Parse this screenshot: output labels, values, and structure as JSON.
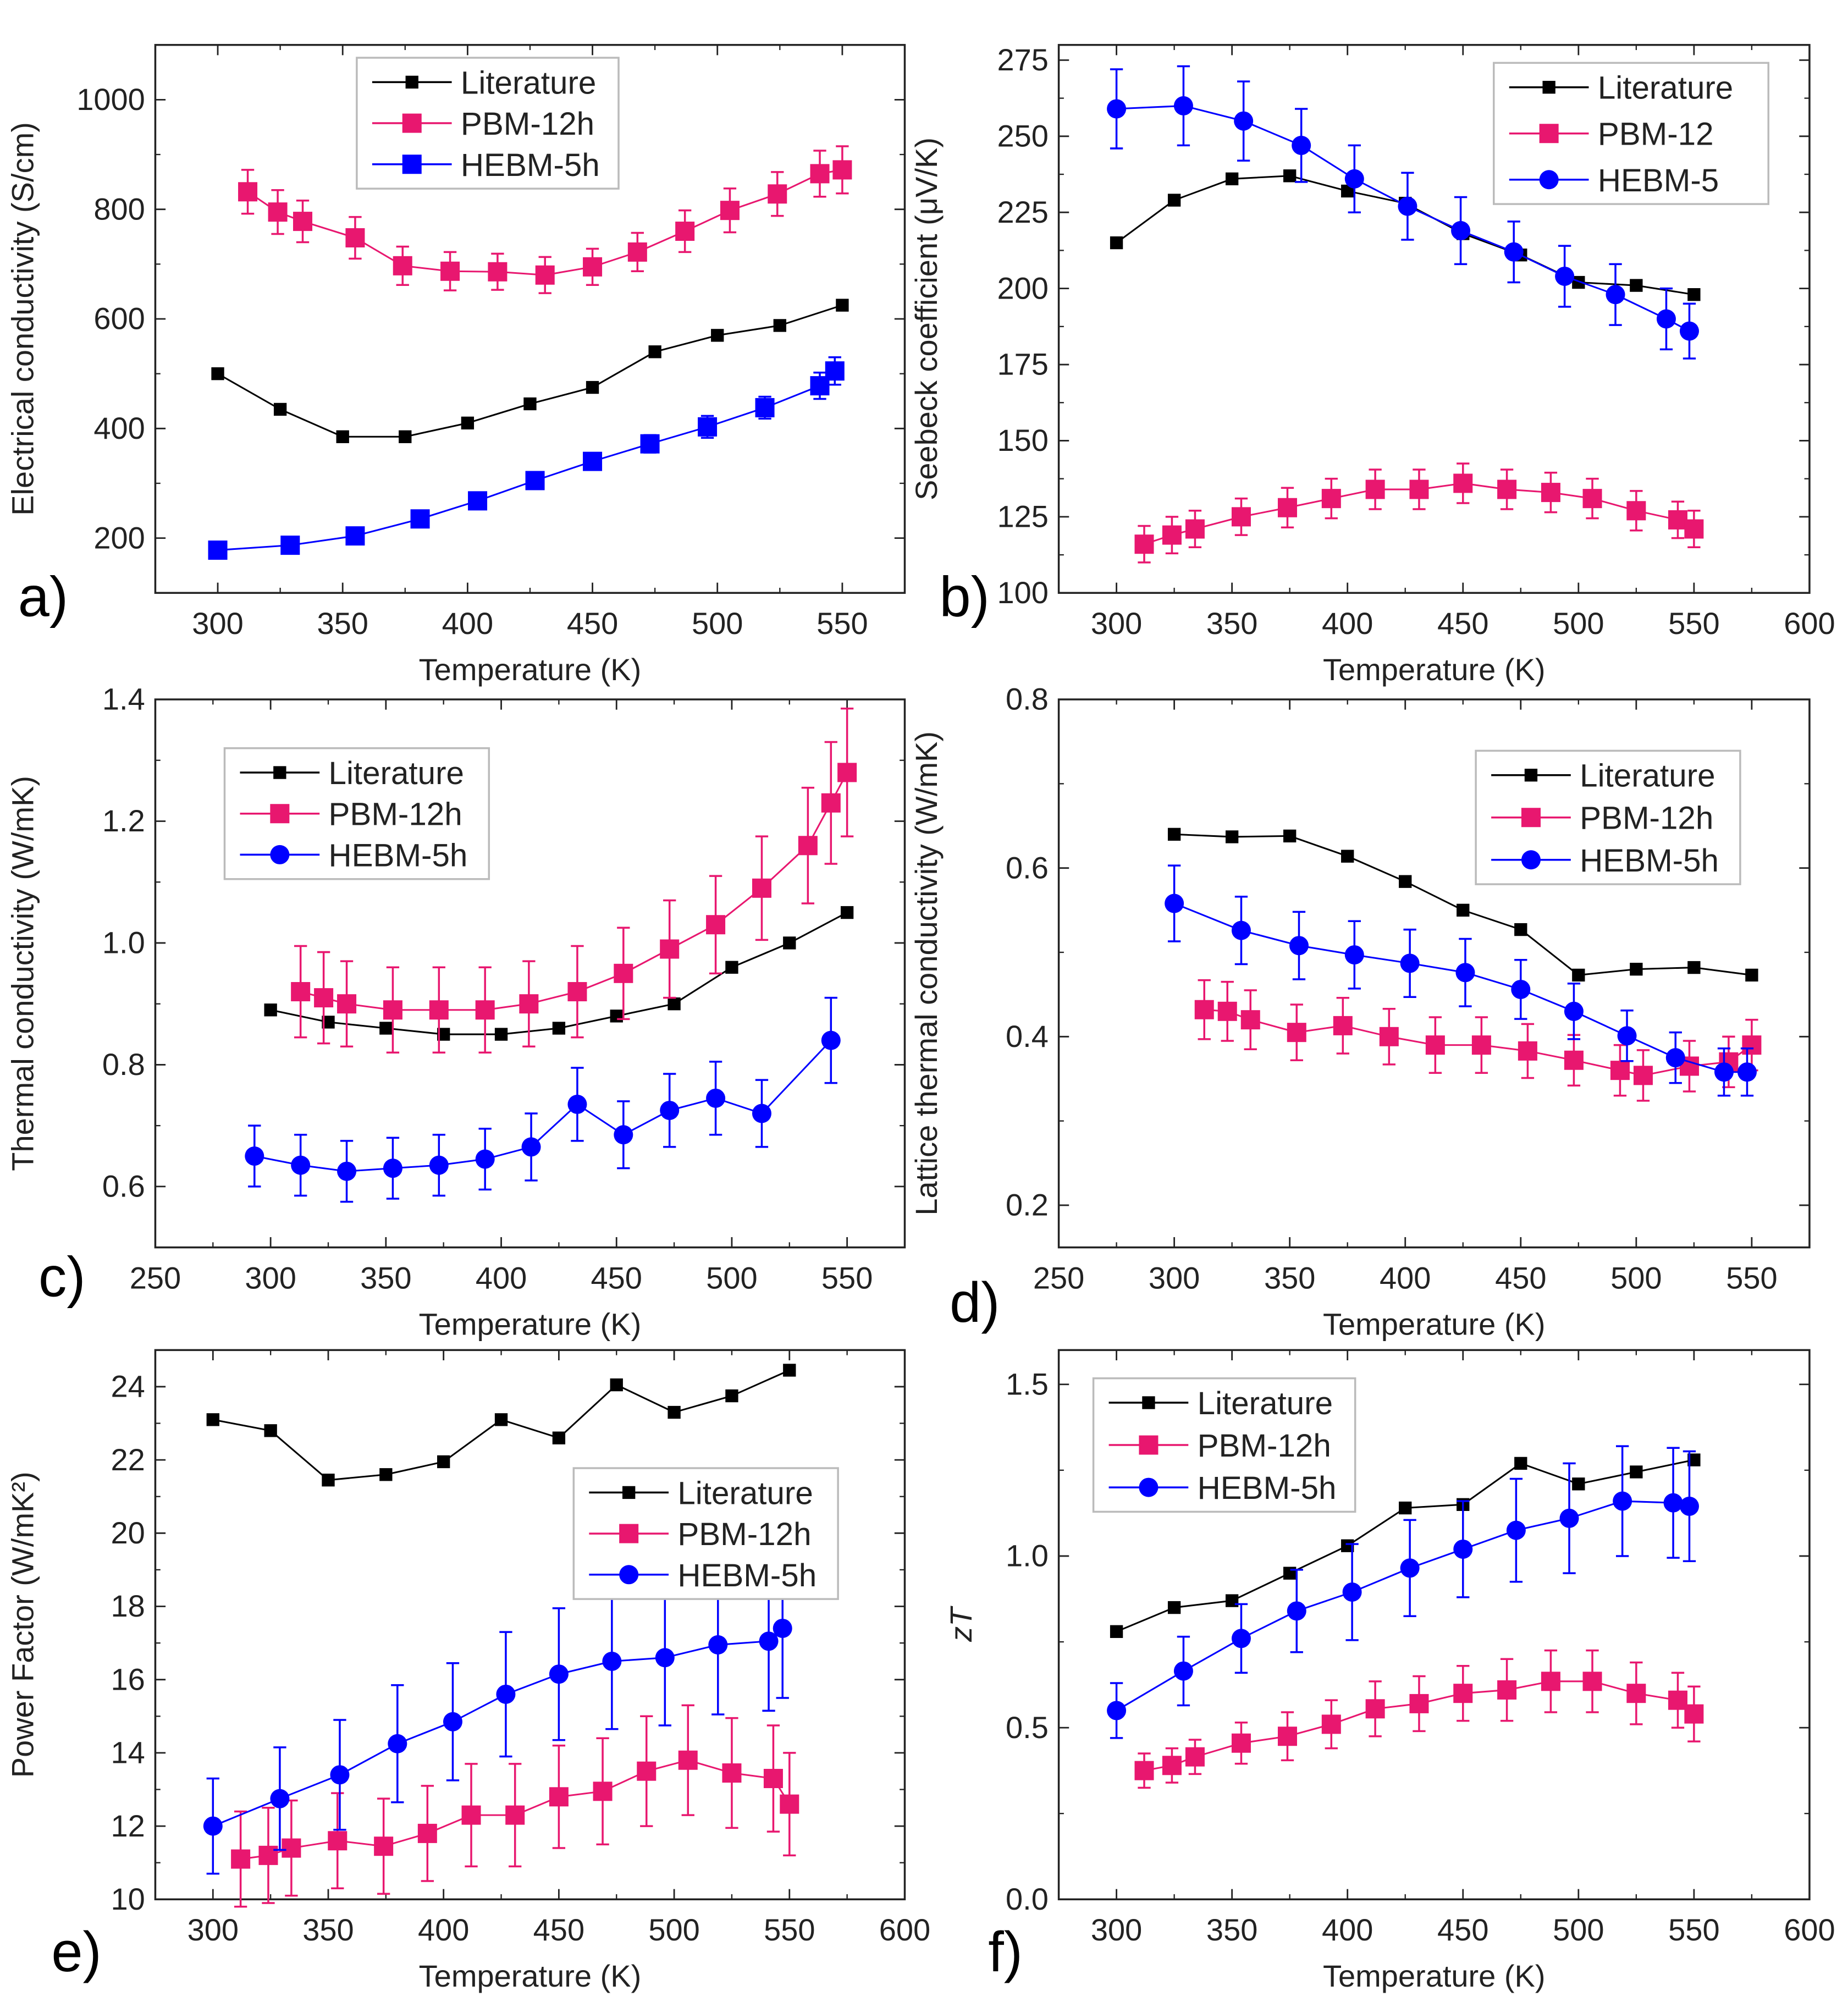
{
  "colors": {
    "Literature": "#000000",
    "PBM": "#e8176f",
    "HEBM": "#0000ff"
  },
  "chart_data": [
    {
      "panel_label": "a)",
      "type": "line",
      "xlabel": "Temperature (K)",
      "ylabel": "Electrical conductivity (S/cm)",
      "xlim": [
        275,
        575
      ],
      "ylim": [
        100,
        1100
      ],
      "xticks": [
        "300",
        "350",
        "400",
        "450",
        "500",
        "550"
      ],
      "yticks": [
        "200",
        "400",
        "600",
        "800",
        "1000"
      ],
      "legend": "top-center",
      "series": [
        {
          "name": "Literature",
          "color": "#000000",
          "marker": "square-small",
          "x": [
            300,
            325,
            350,
            375,
            400,
            425,
            450,
            475,
            500,
            525,
            550
          ],
          "y": [
            500,
            435,
            385,
            385,
            410,
            445,
            475,
            540,
            570,
            588,
            625
          ]
        },
        {
          "name": "PBM-12h",
          "color": "#e8176f",
          "marker": "square",
          "x": [
            312,
            324,
            334,
            355,
            374,
            393,
            412,
            431,
            450,
            468,
            487,
            505,
            524,
            541,
            550
          ],
          "y": [
            832,
            795,
            778,
            748,
            697,
            687,
            686,
            680,
            695,
            722,
            760,
            798,
            828,
            865,
            872
          ],
          "err": [
            40,
            40,
            38,
            38,
            35,
            35,
            33,
            33,
            33,
            35,
            38,
            40,
            40,
            42,
            43
          ]
        },
        {
          "name": "HEBM-5h",
          "color": "#0000ff",
          "marker": "square",
          "x": [
            300,
            329,
            355,
            381,
            404,
            427,
            450,
            473,
            496,
            519,
            541,
            547
          ],
          "y": [
            178,
            187,
            204,
            235,
            268,
            305,
            340,
            372,
            403,
            438,
            478,
            505
          ],
          "err": [
            6,
            6,
            7,
            8,
            9,
            10,
            12,
            16,
            20,
            20,
            24,
            25
          ]
        }
      ]
    },
    {
      "panel_label": "b)",
      "type": "line",
      "xlabel": "Temperature (K)",
      "ylabel": "Seebeck coefficient (μV/K)",
      "xlim": [
        275,
        600
      ],
      "ylim": [
        100,
        280
      ],
      "xticks": [
        "300",
        "350",
        "400",
        "450",
        "500",
        "550",
        "600"
      ],
      "yticks": [
        "100",
        "125",
        "150",
        "175",
        "200",
        "225",
        "250",
        "275"
      ],
      "legend": "top-right",
      "series": [
        {
          "name": "Literature",
          "color": "#000000",
          "marker": "square-small",
          "x": [
            300,
            325,
            350,
            375,
            400,
            425,
            450,
            475,
            500,
            525,
            550
          ],
          "y": [
            215,
            229,
            236,
            237,
            232,
            228,
            218,
            211,
            202,
            201,
            198
          ]
        },
        {
          "name": "PBM-12",
          "color": "#e8176f",
          "marker": "square",
          "x": [
            312,
            324,
            334,
            354,
            374,
            393,
            412,
            431,
            450,
            469,
            488,
            506,
            525,
            543,
            550
          ],
          "y": [
            116,
            119,
            121,
            125,
            128,
            131,
            134,
            134,
            136,
            134,
            133,
            131,
            127,
            124,
            121
          ],
          "err": [
            6,
            6,
            6,
            6,
            6.5,
            6.5,
            6.5,
            6.5,
            6.5,
            6.5,
            6.5,
            6.5,
            6.5,
            6,
            6
          ]
        },
        {
          "name": "HEBM-5",
          "color": "#0000ff",
          "marker": "circle",
          "x": [
            300,
            329,
            355,
            380,
            403,
            426,
            449,
            472,
            494,
            516,
            538,
            548
          ],
          "y": [
            259,
            260,
            255,
            247,
            236,
            227,
            219,
            212,
            204,
            198,
            190,
            186
          ],
          "err": [
            13,
            13,
            13,
            12,
            11,
            11,
            11,
            10,
            10,
            10,
            10,
            9
          ]
        }
      ]
    },
    {
      "panel_label": "c)",
      "type": "line",
      "xlabel": "Temperature (K)",
      "ylabel": "Thermal conductivity (W/mK)",
      "xlim": [
        250,
        575
      ],
      "ylim": [
        0.5,
        1.4
      ],
      "xticks": [
        "250",
        "300",
        "350",
        "400",
        "450",
        "500",
        "550"
      ],
      "yticks": [
        "0.6",
        "0.8",
        "1.0",
        "1.2",
        "1.4"
      ],
      "legend": "top-left",
      "series": [
        {
          "name": "Literature",
          "color": "#000000",
          "marker": "square-small",
          "x": [
            300,
            325,
            350,
            375,
            400,
            425,
            450,
            475,
            500,
            525,
            550
          ],
          "y": [
            0.89,
            0.87,
            0.86,
            0.85,
            0.85,
            0.86,
            0.88,
            0.9,
            0.96,
            1.0,
            1.05
          ]
        },
        {
          "name": "PBM-12h",
          "color": "#e8176f",
          "marker": "square",
          "x": [
            313,
            323,
            333,
            353,
            373,
            393,
            412,
            433,
            453,
            473,
            493,
            513,
            533,
            543,
            550
          ],
          "y": [
            0.92,
            0.91,
            0.9,
            0.89,
            0.89,
            0.89,
            0.9,
            0.92,
            0.95,
            0.99,
            1.03,
            1.09,
            1.16,
            1.23,
            1.28
          ],
          "err": [
            0.075,
            0.075,
            0.07,
            0.07,
            0.07,
            0.07,
            0.07,
            0.075,
            0.075,
            0.08,
            0.08,
            0.085,
            0.095,
            0.1,
            0.105
          ]
        },
        {
          "name": "HEBM-5h",
          "color": "#0000ff",
          "marker": "circle",
          "x": [
            293,
            313,
            333,
            353,
            373,
            393,
            413,
            433,
            453,
            473,
            493,
            513,
            543
          ],
          "y": [
            0.65,
            0.635,
            0.625,
            0.63,
            0.635,
            0.645,
            0.665,
            0.735,
            0.685,
            0.725,
            0.745,
            0.72,
            0.84
          ],
          "err": [
            0.05,
            0.05,
            0.05,
            0.05,
            0.05,
            0.05,
            0.055,
            0.06,
            0.055,
            0.06,
            0.06,
            0.055,
            0.07
          ]
        }
      ]
    },
    {
      "panel_label": "d)",
      "type": "line",
      "xlabel": "Temperature (K)",
      "ylabel": "Lattice thermal conductivity (W/mK)",
      "xlim": [
        250,
        575
      ],
      "ylim": [
        0.15,
        0.8
      ],
      "xticks": [
        "250",
        "300",
        "350",
        "400",
        "450",
        "500",
        "550"
      ],
      "yticks": [
        "0.2",
        "0.4",
        "0.6",
        "0.8"
      ],
      "legend": "top-right",
      "series": [
        {
          "name": "Literature",
          "color": "#000000",
          "marker": "square-small",
          "x": [
            300,
            325,
            350,
            375,
            400,
            425,
            450,
            475,
            500,
            525,
            550
          ],
          "y": [
            0.64,
            0.637,
            0.638,
            0.614,
            0.584,
            0.55,
            0.527,
            0.473,
            0.48,
            0.482,
            0.473
          ]
        },
        {
          "name": "PBM-12h",
          "color": "#e8176f",
          "marker": "square",
          "x": [
            313,
            323,
            333,
            353,
            373,
            393,
            413,
            433,
            453,
            473,
            493,
            503,
            523,
            540,
            550
          ],
          "y": [
            0.432,
            0.43,
            0.42,
            0.405,
            0.413,
            0.4,
            0.39,
            0.39,
            0.383,
            0.372,
            0.36,
            0.354,
            0.365,
            0.37,
            0.39
          ],
          "err": [
            0.035,
            0.035,
            0.035,
            0.033,
            0.033,
            0.033,
            0.033,
            0.033,
            0.032,
            0.03,
            0.03,
            0.03,
            0.03,
            0.03,
            0.03
          ]
        },
        {
          "name": "HEBM-5h",
          "color": "#0000ff",
          "marker": "circle",
          "x": [
            300,
            329,
            354,
            378,
            402,
            426,
            450,
            473,
            496,
            517,
            538,
            548
          ],
          "y": [
            0.558,
            0.526,
            0.508,
            0.497,
            0.487,
            0.476,
            0.456,
            0.43,
            0.401,
            0.375,
            0.358,
            0.358
          ],
          "err": [
            0.045,
            0.04,
            0.04,
            0.04,
            0.04,
            0.04,
            0.035,
            0.033,
            0.03,
            0.03,
            0.028,
            0.028
          ]
        }
      ]
    },
    {
      "panel_label": "e)",
      "type": "line",
      "xlabel": "Temperature (K)",
      "ylabel": "Power Factor (W/mK²)",
      "xlim": [
        275,
        600
      ],
      "ylim": [
        10,
        25
      ],
      "xticks": [
        "300",
        "350",
        "400",
        "450",
        "500",
        "550",
        "600"
      ],
      "yticks": [
        "10",
        "12",
        "14",
        "16",
        "18",
        "20",
        "22",
        "24"
      ],
      "legend": "center-right",
      "series": [
        {
          "name": "Literature",
          "color": "#000000",
          "marker": "square-small",
          "x": [
            300,
            325,
            350,
            375,
            400,
            425,
            450,
            475,
            500,
            525,
            550
          ],
          "y": [
            23.1,
            22.8,
            21.45,
            21.6,
            21.95,
            23.1,
            22.6,
            24.05,
            23.3,
            23.75,
            24.45
          ]
        },
        {
          "name": "PBM-12h",
          "color": "#e8176f",
          "marker": "square",
          "x": [
            312,
            324,
            334,
            354,
            374,
            393,
            412,
            431,
            450,
            469,
            488,
            506,
            525,
            543,
            550
          ],
          "y": [
            11.1,
            11.2,
            11.4,
            11.6,
            11.45,
            11.8,
            12.3,
            12.3,
            12.8,
            12.95,
            13.5,
            13.8,
            13.45,
            13.3,
            12.6
          ],
          "err": [
            1.3,
            1.3,
            1.3,
            1.3,
            1.3,
            1.3,
            1.4,
            1.4,
            1.4,
            1.45,
            1.5,
            1.5,
            1.5,
            1.45,
            1.4
          ]
        },
        {
          "name": "HEBM-5h",
          "color": "#0000ff",
          "marker": "circle",
          "x": [
            300,
            329,
            355,
            380,
            404,
            427,
            450,
            473,
            496,
            519,
            541,
            547
          ],
          "y": [
            12.0,
            12.75,
            13.4,
            14.25,
            14.85,
            15.6,
            16.15,
            16.5,
            16.6,
            16.95,
            17.05,
            17.4
          ],
          "err": [
            1.3,
            1.4,
            1.5,
            1.6,
            1.6,
            1.7,
            1.8,
            1.85,
            1.85,
            1.9,
            1.9,
            1.9
          ]
        }
      ]
    },
    {
      "panel_label": "f)",
      "type": "line",
      "xlabel": "Temperature (K)",
      "ylabel": "zT",
      "xlim": [
        275,
        600
      ],
      "ylim": [
        0,
        1.6
      ],
      "xticks": [
        "300",
        "350",
        "400",
        "450",
        "500",
        "550",
        "600"
      ],
      "yticks": [
        "0.0",
        "0.5",
        "1.0",
        "1.5"
      ],
      "legend": "top-left",
      "series": [
        {
          "name": "Literature",
          "color": "#000000",
          "marker": "square-small",
          "x": [
            300,
            325,
            350,
            375,
            400,
            425,
            450,
            475,
            500,
            525,
            550
          ],
          "y": [
            0.78,
            0.85,
            0.87,
            0.95,
            1.03,
            1.14,
            1.15,
            1.27,
            1.21,
            1.245,
            1.28
          ]
        },
        {
          "name": "PBM-12h",
          "color": "#e8176f",
          "marker": "square",
          "x": [
            312,
            324,
            334,
            354,
            374,
            393,
            412,
            431,
            450,
            469,
            488,
            506,
            525,
            543,
            550
          ],
          "y": [
            0.375,
            0.39,
            0.415,
            0.455,
            0.475,
            0.51,
            0.555,
            0.57,
            0.6,
            0.61,
            0.635,
            0.635,
            0.6,
            0.58,
            0.54
          ],
          "err": [
            0.05,
            0.05,
            0.05,
            0.06,
            0.07,
            0.07,
            0.08,
            0.08,
            0.08,
            0.09,
            0.09,
            0.09,
            0.09,
            0.08,
            0.08
          ]
        },
        {
          "name": "HEBM-5h",
          "color": "#0000ff",
          "marker": "circle",
          "x": [
            300,
            329,
            354,
            378,
            402,
            427,
            450,
            473,
            496,
            519,
            541,
            548
          ],
          "y": [
            0.55,
            0.665,
            0.76,
            0.84,
            0.895,
            0.965,
            1.02,
            1.075,
            1.11,
            1.16,
            1.155,
            1.145
          ],
          "err": [
            0.08,
            0.1,
            0.1,
            0.12,
            0.14,
            0.14,
            0.14,
            0.15,
            0.16,
            0.16,
            0.16,
            0.16
          ]
        }
      ]
    }
  ]
}
